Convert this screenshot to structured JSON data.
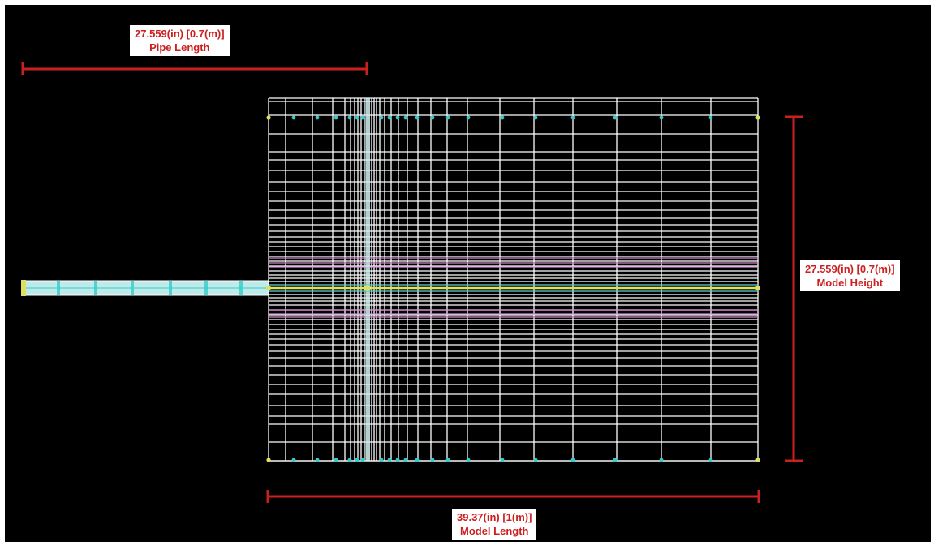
{
  "dimensions": {
    "pipe_length": {
      "value": "27.559(in) [0.7(m)]",
      "name": "Pipe Length"
    },
    "model_height": {
      "value": "27.559(in) [0.7(m)]",
      "name": "Model Height"
    },
    "model_length": {
      "value": "39.37(in) [1(m)]",
      "name": "Model Length"
    }
  },
  "colors": {
    "background": "#000000",
    "mesh": "#ffffff",
    "nodes": "#33cccc",
    "dimension_lines": "#cc1f1f",
    "refinement_band": "#cc88cc",
    "pipe": "#bfeaea",
    "centerline": "#e0e060"
  }
}
